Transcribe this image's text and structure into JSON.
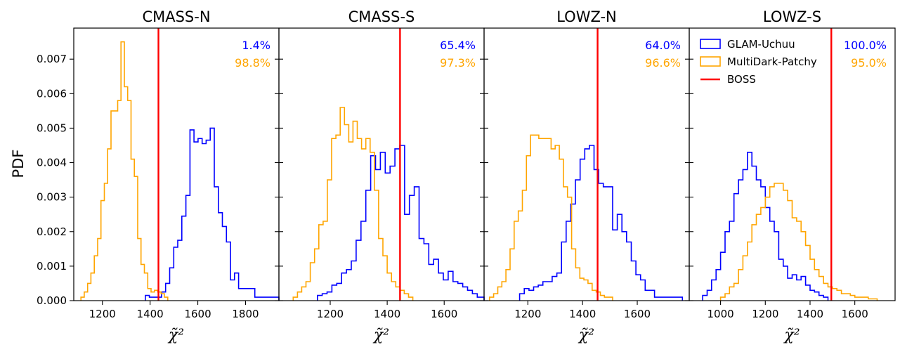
{
  "figure": {
    "ylabel": "PDF",
    "xlabel": "χ̃²",
    "colors": {
      "glam": "#0000ff",
      "patchy": "#ffa500",
      "boss": "#ff0000"
    }
  },
  "legend": [
    {
      "name": "GLAM-Uchuu",
      "color": "#0000ff",
      "kind": "box"
    },
    {
      "name": "MultiDark-Patchy",
      "color": "#ffa500",
      "kind": "box"
    },
    {
      "name": "BOSS",
      "color": "#ff0000",
      "kind": "line"
    }
  ],
  "chart_data": [
    {
      "type": "histogram",
      "title": "CMASS-N",
      "xlim": [
        1080,
        1940
      ],
      "ylim": [
        0,
        0.0079
      ],
      "xticks": [
        1200,
        1400,
        1600,
        1800
      ],
      "yticks": [
        0.0,
        0.001,
        0.002,
        0.003,
        0.004,
        0.005,
        0.006,
        0.007
      ],
      "ytick_labels": [
        "0.000",
        "0.001",
        "0.002",
        "0.003",
        "0.004",
        "0.005",
        "0.006",
        "0.007"
      ],
      "boss_value": 1435,
      "percentages": {
        "glam": "1.4%",
        "patchy": "98.8%"
      },
      "series": [
        {
          "name": "GLAM-Uchuu",
          "edges": [
            1380,
            1397,
            1414,
            1431,
            1448,
            1465,
            1482,
            1499,
            1516,
            1533,
            1550,
            1567,
            1584,
            1601,
            1618,
            1635,
            1652,
            1669,
            1686,
            1703,
            1720,
            1737,
            1754,
            1771,
            1788,
            1805,
            1822,
            1839,
            1856,
            1873,
            1890,
            1940
          ],
          "values": [
            0.00015,
            0.0001,
            0.0001,
            0.0001,
            0.00025,
            0.0005,
            0.00095,
            0.00155,
            0.00175,
            0.00245,
            0.00305,
            0.00495,
            0.0046,
            0.0047,
            0.00455,
            0.00465,
            0.005,
            0.0033,
            0.00255,
            0.00215,
            0.0017,
            0.0006,
            0.0008,
            0.00035,
            0.00035,
            0.00035,
            0.00035,
            0.0001,
            0.0001,
            0.0001,
            0.0001
          ]
        },
        {
          "name": "MultiDark-Patchy",
          "edges": [
            1110,
            1124,
            1138,
            1152,
            1166,
            1180,
            1194,
            1208,
            1222,
            1236,
            1250,
            1264,
            1278,
            1292,
            1306,
            1320,
            1334,
            1348,
            1362,
            1376,
            1390,
            1404,
            1418,
            1432,
            1446,
            1460,
            1474
          ],
          "values": [
            0.0001,
            0.00025,
            0.0005,
            0.0008,
            0.0013,
            0.0018,
            0.0029,
            0.0034,
            0.0044,
            0.0055,
            0.0055,
            0.0058,
            0.0075,
            0.0062,
            0.0058,
            0.0041,
            0.0036,
            0.0018,
            0.00105,
            0.0008,
            0.00035,
            0.00025,
            0.0003,
            0.00025,
            0.0002,
            0.0001
          ]
        }
      ]
    },
    {
      "type": "histogram",
      "title": "CMASS-S",
      "xlim": [
        1020,
        1740
      ],
      "ylim": [
        0,
        0.0079
      ],
      "xticks": [
        1200,
        1400,
        1600
      ],
      "boss_value": 1445,
      "percentages": {
        "glam": "65.4%",
        "patchy": "97.3%"
      },
      "series": [
        {
          "name": "GLAM-Uchuu",
          "edges": [
            1155,
            1172,
            1189,
            1206,
            1223,
            1240,
            1257,
            1274,
            1291,
            1308,
            1325,
            1342,
            1359,
            1376,
            1393,
            1410,
            1427,
            1444,
            1461,
            1478,
            1495,
            1512,
            1529,
            1546,
            1563,
            1580,
            1597,
            1614,
            1631,
            1648,
            1665,
            1682,
            1699,
            1716,
            1740
          ],
          "values": [
            0.00015,
            0.0002,
            0.00025,
            0.00045,
            0.0005,
            0.0008,
            0.0009,
            0.00115,
            0.00175,
            0.0023,
            0.0032,
            0.0042,
            0.0038,
            0.0043,
            0.0037,
            0.0039,
            0.0044,
            0.0045,
            0.0025,
            0.00305,
            0.0033,
            0.0018,
            0.00165,
            0.00105,
            0.0012,
            0.0008,
            0.0006,
            0.00085,
            0.00055,
            0.0005,
            0.0004,
            0.0003,
            0.0002,
            0.0001
          ]
        },
        {
          "name": "MultiDark-Patchy",
          "edges": [
            1070,
            1085,
            1100,
            1115,
            1130,
            1145,
            1160,
            1175,
            1190,
            1205,
            1220,
            1235,
            1250,
            1265,
            1280,
            1295,
            1310,
            1325,
            1340,
            1355,
            1370,
            1385,
            1400,
            1415,
            1430,
            1445,
            1460,
            1475,
            1490
          ],
          "values": [
            0.0001,
            0.00025,
            0.0004,
            0.00055,
            0.0011,
            0.0015,
            0.0022,
            0.0023,
            0.0035,
            0.0047,
            0.0048,
            0.0056,
            0.0051,
            0.0046,
            0.0052,
            0.0047,
            0.0044,
            0.0047,
            0.0043,
            0.0032,
            0.0018,
            0.0013,
            0.0008,
            0.00055,
            0.0004,
            0.0003,
            0.0002,
            0.0001
          ]
        }
      ]
    },
    {
      "type": "histogram",
      "title": "LOWZ-N",
      "xlim": [
        1040,
        1790
      ],
      "ylim": [
        0,
        0.0079
      ],
      "xticks": [
        1200,
        1400,
        1600
      ],
      "boss_value": 1455,
      "percentages": {
        "glam": "64.0%",
        "patchy": "96.6%"
      },
      "series": [
        {
          "name": "GLAM-Uchuu",
          "edges": [
            1170,
            1187,
            1204,
            1221,
            1238,
            1255,
            1272,
            1289,
            1306,
            1323,
            1340,
            1357,
            1374,
            1391,
            1408,
            1425,
            1442,
            1459,
            1476,
            1493,
            1510,
            1527,
            1544,
            1561,
            1578,
            1595,
            1612,
            1629,
            1646,
            1663,
            1680,
            1697,
            1714,
            1731,
            1748,
            1765
          ],
          "values": [
            0.0002,
            0.00035,
            0.0003,
            0.0004,
            0.00045,
            0.00055,
            0.00055,
            0.0007,
            0.0008,
            0.0017,
            0.0023,
            0.0028,
            0.0035,
            0.0041,
            0.0044,
            0.0045,
            0.0038,
            0.0034,
            0.0033,
            0.0033,
            0.00205,
            0.0025,
            0.002,
            0.0017,
            0.00115,
            0.00075,
            0.0006,
            0.0003,
            0.0003,
            0.0001,
            0.0001,
            0.0001,
            0.0001,
            0.0001,
            0.0001
          ]
        },
        {
          "name": "MultiDark-Patchy",
          "edges": [
            1060,
            1075,
            1090,
            1105,
            1120,
            1135,
            1150,
            1165,
            1180,
            1195,
            1210,
            1225,
            1240,
            1255,
            1270,
            1285,
            1300,
            1315,
            1330,
            1345,
            1360,
            1375,
            1390,
            1405,
            1420,
            1435,
            1450,
            1465,
            1480,
            1495,
            1510
          ],
          "values": [
            0.0001,
            0.0002,
            0.0004,
            0.00055,
            0.0009,
            0.0015,
            0.0023,
            0.0026,
            0.0032,
            0.0042,
            0.0048,
            0.0048,
            0.0047,
            0.0047,
            0.0047,
            0.0044,
            0.0045,
            0.0041,
            0.0033,
            0.003,
            0.0015,
            0.00095,
            0.00065,
            0.0006,
            0.0005,
            0.0003,
            0.00025,
            0.00015,
            0.0001,
            0.0001
          ]
        }
      ]
    },
    {
      "type": "histogram",
      "title": "LOWZ-S",
      "xlim": [
        860,
        1780
      ],
      "ylim": [
        0,
        0.0079
      ],
      "xticks": [
        1000,
        1200,
        1400,
        1600
      ],
      "boss_value": 1495,
      "percentages": {
        "glam": "100.0%",
        "patchy": "95.0%"
      },
      "series": [
        {
          "name": "GLAM-Uchuu",
          "edges": [
            920,
            940,
            960,
            980,
            1000,
            1020,
            1040,
            1060,
            1080,
            1100,
            1120,
            1140,
            1160,
            1180,
            1200,
            1220,
            1240,
            1260,
            1280,
            1300,
            1320,
            1340,
            1360,
            1380,
            1400,
            1420,
            1440,
            1460,
            1480
          ],
          "values": [
            0.00015,
            0.0003,
            0.0006,
            0.0009,
            0.0014,
            0.002,
            0.0023,
            0.0031,
            0.0035,
            0.0038,
            0.0043,
            0.0039,
            0.0035,
            0.0033,
            0.0027,
            0.0023,
            0.002,
            0.0012,
            0.001,
            0.00065,
            0.00075,
            0.0006,
            0.0007,
            0.00045,
            0.0003,
            0.00025,
            0.00015,
            0.0001
          ]
        },
        {
          "name": "MultiDark-Patchy",
          "edges": [
            1000,
            1020,
            1040,
            1060,
            1080,
            1100,
            1120,
            1140,
            1160,
            1180,
            1200,
            1220,
            1240,
            1260,
            1280,
            1300,
            1320,
            1340,
            1360,
            1380,
            1400,
            1420,
            1440,
            1460,
            1480,
            1500,
            1520,
            1540,
            1560,
            1580,
            1600,
            1620,
            1640,
            1660,
            1680,
            1700
          ],
          "values": [
            0.0001,
            0.0002,
            0.0004,
            0.0005,
            0.0009,
            0.0013,
            0.0017,
            0.0022,
            0.0025,
            0.0027,
            0.003,
            0.0033,
            0.0034,
            0.0034,
            0.0032,
            0.0029,
            0.0024,
            0.0023,
            0.002,
            0.0016,
            0.0012,
            0.0009,
            0.0007,
            0.0005,
            0.0004,
            0.00035,
            0.0003,
            0.0002,
            0.0002,
            0.00015,
            0.0001,
            0.0001,
            0.0001,
            5e-05,
            5e-05
          ]
        }
      ]
    }
  ]
}
